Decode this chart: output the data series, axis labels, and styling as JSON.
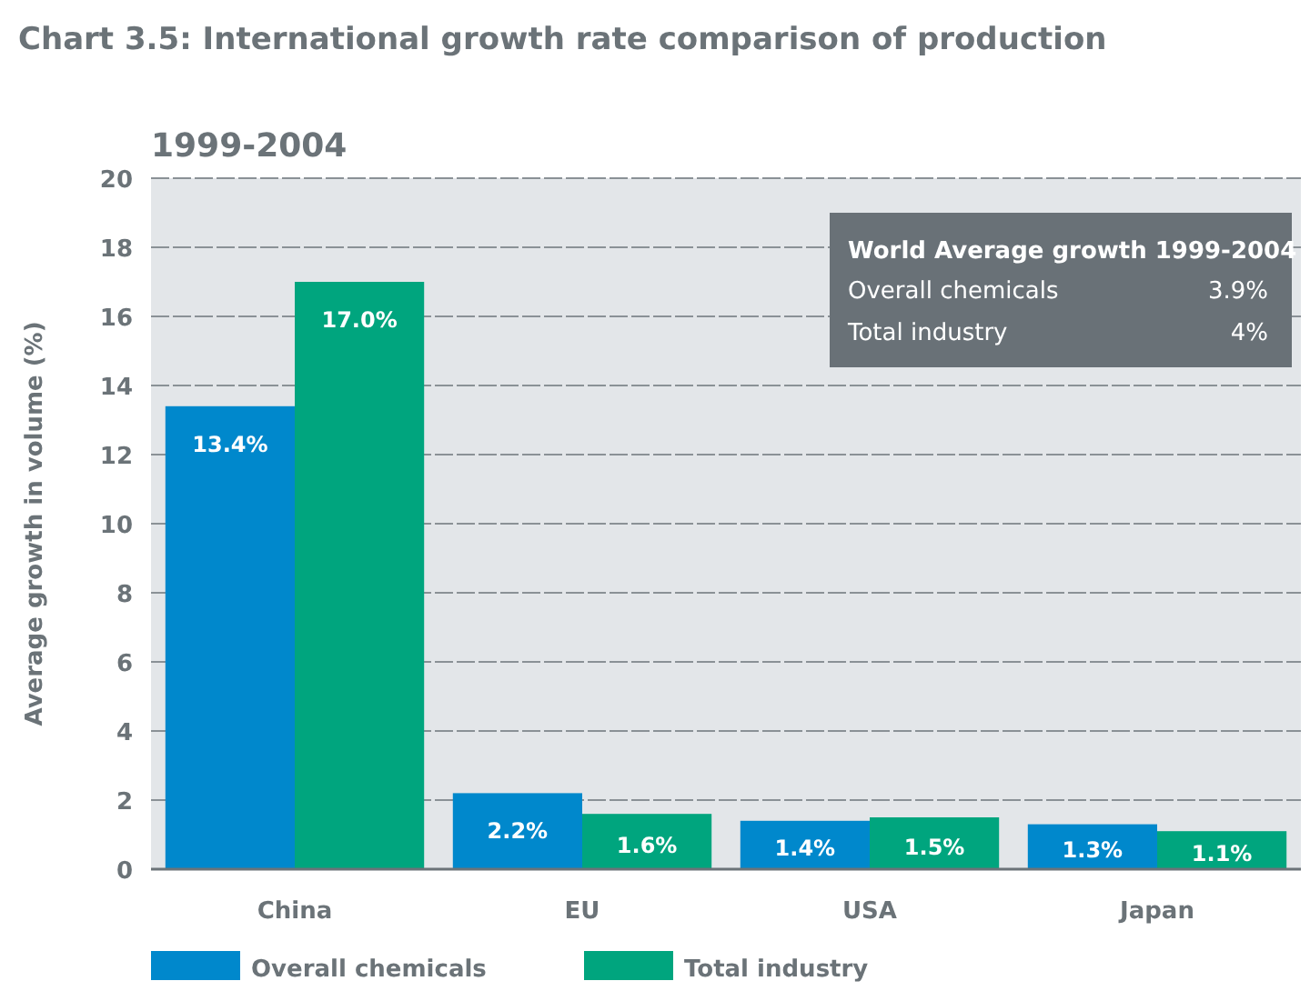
{
  "chart_data": {
    "type": "bar",
    "title": "Chart 3.5: International growth rate comparison of production",
    "subtitle": "1999-2004",
    "ylabel": "Average growth in volume (%)",
    "categories": [
      "China",
      "EU",
      "USA",
      "Japan"
    ],
    "series": [
      {
        "name": "Overall chemicals",
        "color": "#0088cc",
        "values": [
          13.4,
          2.2,
          1.4,
          1.3
        ],
        "value_labels": [
          "13.4%",
          "2.2%",
          "1.4%",
          "1.3%"
        ]
      },
      {
        "name": "Total industry",
        "color": "#00a57e",
        "values": [
          17.0,
          1.6,
          1.5,
          1.1
        ],
        "value_labels": [
          "17.0%",
          "1.6%",
          "1.5%",
          "1.1%"
        ]
      }
    ],
    "ylim": [
      0,
      20
    ],
    "yticks": [
      0,
      2,
      4,
      6,
      8,
      10,
      12,
      14,
      16,
      18,
      20
    ],
    "grid": "y",
    "legend": "bottom",
    "annotations": [
      "World Average growth 1999-2004",
      "Overall chemicals",
      "3.9%",
      "Total industry",
      "4%"
    ]
  }
}
